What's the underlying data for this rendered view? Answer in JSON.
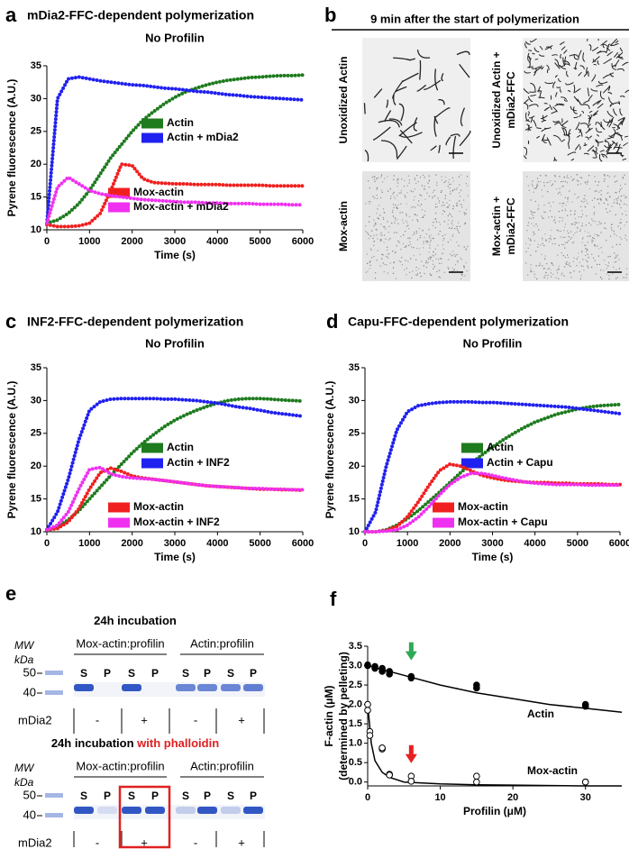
{
  "chart_data": [
    {
      "type": "line",
      "panel": "a",
      "title": "mDia2-FFC-dependent polymerization",
      "subtitle": "No Profilin",
      "xlabel": "Time (s)",
      "ylabel": "Pyrene fluorescence (A.U.)",
      "x": [
        0,
        250,
        500,
        750,
        1000,
        1250,
        1500,
        1750,
        2000,
        2250,
        2500,
        2750,
        3000,
        3250,
        3500,
        3750,
        4000,
        4250,
        4500,
        4750,
        5000,
        5250,
        5500,
        5750,
        6000
      ],
      "xlim": [
        0,
        6000
      ],
      "xticks": [
        0,
        1000,
        2000,
        3000,
        4000,
        5000,
        6000
      ],
      "ylim": [
        10,
        35
      ],
      "yticks": [
        10,
        15,
        20,
        25,
        30,
        35
      ],
      "series": [
        {
          "name": "Actin",
          "color": "#1e7b1e",
          "values": [
            11,
            11.5,
            12.5,
            14,
            16,
            18.5,
            21,
            23,
            25,
            26.7,
            28,
            29.2,
            30.2,
            31,
            31.6,
            32.1,
            32.5,
            32.8,
            33,
            33.2,
            33.3,
            33.4,
            33.5,
            33.5,
            33.6
          ]
        },
        {
          "name": "Actin + mDia2",
          "color": "#2020f0",
          "values": [
            11,
            30,
            33,
            33.3,
            33,
            32.7,
            32.5,
            32.3,
            32.1,
            32,
            31.8,
            31.6,
            31.5,
            31.3,
            31.1,
            31,
            30.8,
            30.6,
            30.5,
            30.3,
            30.2,
            30.1,
            30,
            29.9,
            29.8
          ]
        },
        {
          "name": "Mox-actin",
          "color": "#f02020",
          "values": [
            10.8,
            10.5,
            10.5,
            10.6,
            11,
            12.5,
            16,
            20,
            19.8,
            17.8,
            17.2,
            17.1,
            17,
            17,
            16.9,
            16.9,
            16.9,
            16.8,
            16.8,
            16.8,
            16.8,
            16.7,
            16.7,
            16.7,
            16.7
          ]
        },
        {
          "name": "Mox-actin + mDia2",
          "color": "#f030f0",
          "values": [
            11,
            16.5,
            18,
            17,
            16,
            15.5,
            15.2,
            15,
            14.8,
            14.6,
            14.5,
            14.4,
            14.3,
            14.2,
            14.2,
            14.1,
            14.1,
            14,
            14,
            14,
            13.9,
            13.9,
            13.9,
            13.8,
            13.8
          ]
        }
      ]
    },
    {
      "type": "line",
      "panel": "c",
      "title": "INF2-FFC-dependent polymerization",
      "subtitle": "No Profilin",
      "xlabel": "Time (s)",
      "ylabel": "Pyrene fluorescence (A.U.)",
      "x": [
        0,
        250,
        500,
        750,
        1000,
        1250,
        1500,
        1750,
        2000,
        2250,
        2500,
        2750,
        3000,
        3250,
        3500,
        3750,
        4000,
        4250,
        4500,
        4750,
        5000,
        5250,
        5500,
        5750,
        6000
      ],
      "xlim": [
        0,
        6000
      ],
      "xticks": [
        0,
        1000,
        2000,
        3000,
        4000,
        5000,
        6000
      ],
      "ylim": [
        10,
        35
      ],
      "yticks": [
        10,
        15,
        20,
        25,
        30,
        35
      ],
      "series": [
        {
          "name": "Actin",
          "color": "#1e7b1e",
          "values": [
            10.3,
            10.8,
            11.8,
            13.2,
            15,
            16.8,
            18.6,
            20.3,
            22,
            23.5,
            24.8,
            26,
            27,
            27.8,
            28.5,
            29.1,
            29.6,
            30,
            30.2,
            30.3,
            30.3,
            30.2,
            30.1,
            30,
            29.9
          ]
        },
        {
          "name": "Actin + INF2",
          "color": "#2020f0",
          "values": [
            10.3,
            13,
            18,
            24,
            28.5,
            29.8,
            30.2,
            30.3,
            30.3,
            30.3,
            30.3,
            30.2,
            30.2,
            30.1,
            30,
            29.8,
            29.6,
            29.3,
            29,
            28.8,
            28.5,
            28.2,
            28,
            27.8,
            27.6
          ]
        },
        {
          "name": "Mox-actin",
          "color": "#f02020",
          "values": [
            10.3,
            10.5,
            11.5,
            13.5,
            16.5,
            19,
            19.7,
            19.2,
            18.5,
            18.2,
            18,
            17.8,
            17.6,
            17.4,
            17.2,
            17,
            16.9,
            16.8,
            16.7,
            16.6,
            16.5,
            16.5,
            16.4,
            16.4,
            16.3
          ]
        },
        {
          "name": "Mox-actin + INF2",
          "color": "#f030f0",
          "values": [
            10.3,
            11,
            13,
            16.5,
            19.5,
            19.8,
            18.8,
            18.4,
            18.2,
            18.1,
            18,
            17.8,
            17.6,
            17.4,
            17.2,
            17,
            16.9,
            16.8,
            16.7,
            16.6,
            16.6,
            16.5,
            16.5,
            16.4,
            16.4
          ]
        }
      ]
    },
    {
      "type": "line",
      "panel": "d",
      "title": "Capu-FFC-dependent polymerization",
      "subtitle": "No Profilin",
      "xlabel": "Time (s)",
      "ylabel": "Pyrene fluorescence (A.U.)",
      "x": [
        0,
        250,
        500,
        750,
        1000,
        1250,
        1500,
        1750,
        2000,
        2250,
        2500,
        2750,
        3000,
        3250,
        3500,
        3750,
        4000,
        4250,
        4500,
        4750,
        5000,
        5250,
        5500,
        5750,
        6000
      ],
      "xlim": [
        0,
        6000
      ],
      "xticks": [
        0,
        1000,
        2000,
        3000,
        4000,
        5000,
        6000
      ],
      "ylim": [
        10,
        35
      ],
      "yticks": [
        10,
        15,
        20,
        25,
        30,
        35
      ],
      "series": [
        {
          "name": "Actin",
          "color": "#1e7b1e",
          "values": [
            10,
            10,
            10.3,
            11,
            12,
            13.2,
            14.6,
            16,
            17.5,
            19,
            20.4,
            21.7,
            22.9,
            24,
            25,
            25.9,
            26.7,
            27.3,
            27.9,
            28.3,
            28.7,
            29,
            29.2,
            29.3,
            29.4
          ]
        },
        {
          "name": "Actin + Capu",
          "color": "#2020f0",
          "values": [
            10,
            13,
            20,
            25.5,
            28.3,
            29.2,
            29.5,
            29.7,
            29.8,
            29.8,
            29.8,
            29.7,
            29.7,
            29.6,
            29.5,
            29.4,
            29.3,
            29.2,
            29.1,
            29,
            28.8,
            28.6,
            28.4,
            28.2,
            28
          ]
        },
        {
          "name": "Mox-actin",
          "color": "#f02020",
          "values": [
            10,
            10,
            10.2,
            10.8,
            12.3,
            14.5,
            17,
            19.3,
            20.3,
            20,
            19.3,
            18.6,
            18.2,
            17.9,
            17.7,
            17.6,
            17.5,
            17.5,
            17.4,
            17.4,
            17.3,
            17.3,
            17.3,
            17.2,
            17.2
          ]
        },
        {
          "name": "Mox-actin + Capu",
          "color": "#f030f0",
          "values": [
            10,
            10,
            10.1,
            10.3,
            11,
            12.2,
            13.8,
            15.6,
            17.2,
            18.3,
            18.9,
            18.9,
            18.6,
            18.2,
            17.9,
            17.6,
            17.4,
            17.3,
            17.2,
            17.2,
            17.2,
            17.1,
            17.1,
            17.1,
            17.1
          ]
        }
      ]
    },
    {
      "type": "scatter",
      "panel": "f",
      "xlabel": "Profilin (μM)",
      "ylabel": [
        "F-actin (μM)",
        "(determined by pelleting)"
      ],
      "xlim": [
        0,
        35
      ],
      "xticks": [
        0,
        10,
        20,
        30
      ],
      "ylim": [
        -0.1,
        3.5
      ],
      "yticks": [
        {
          "value": 0,
          "label": "0.0"
        },
        {
          "value": 0.5,
          "label": "0.5"
        },
        {
          "value": 1,
          "label": "1.0"
        },
        {
          "value": 1.5,
          "label": "1.5"
        },
        {
          "value": 2,
          "label": "2.0"
        },
        {
          "value": 2.5,
          "label": "2.5"
        },
        {
          "value": 3,
          "label": "3.0"
        },
        {
          "value": 3.5,
          "label": "3.5"
        }
      ],
      "series": [
        {
          "name": "Actin",
          "color": "#000000",
          "marker": "filled",
          "x": [
            0,
            0,
            1,
            1,
            2,
            2,
            3,
            3,
            6,
            6,
            15,
            15,
            30,
            30
          ],
          "values": [
            3.0,
            3.02,
            2.98,
            2.93,
            2.93,
            2.85,
            2.85,
            2.78,
            2.72,
            2.68,
            2.5,
            2.42,
            2.0,
            1.95
          ]
        },
        {
          "name": "Mox-actin",
          "color": "#000000",
          "marker": "open",
          "x": [
            0,
            0,
            0.3,
            0.3,
            2,
            2,
            3,
            3,
            6,
            6,
            15,
            15,
            30,
            30
          ],
          "values": [
            2.0,
            1.85,
            1.3,
            1.2,
            0.85,
            0.88,
            0.2,
            0.18,
            0.15,
            0.02,
            0.15,
            0.0,
            0.0,
            0.0
          ]
        }
      ],
      "fits": [
        {
          "x": [
            0,
            5,
            10,
            15,
            20,
            25,
            30,
            35
          ],
          "values": [
            3.0,
            2.75,
            2.5,
            2.3,
            2.15,
            2.0,
            1.9,
            1.8
          ]
        },
        {
          "x": [
            0,
            0.5,
            1,
            2,
            3,
            5,
            10,
            15,
            20,
            30,
            35
          ],
          "values": [
            2.0,
            1.0,
            0.55,
            0.25,
            0.12,
            0.0,
            -0.05,
            -0.07,
            -0.08,
            -0.1,
            -0.1
          ]
        }
      ],
      "arrows": [
        {
          "x": 6,
          "y": 2.95,
          "color": "#2eaa55"
        },
        {
          "x": 6,
          "y": 0.3,
          "color": "#e82020"
        }
      ]
    }
  ],
  "micrographs": {
    "panel": "b",
    "title": "9 min after the start of polymerization",
    "images": [
      {
        "label": [
          "Unoxidized Actin"
        ]
      },
      {
        "label": [
          "Unoxidized Actin +",
          "mDia2-FFC"
        ]
      },
      {
        "label": [
          "Mox-actin"
        ]
      },
      {
        "label": [
          "Mox-actin +",
          "mDia2-FFC"
        ]
      }
    ]
  },
  "gels": {
    "panel": "e",
    "blocks": [
      {
        "title": "24h incubation",
        "mw_label": [
          "MW",
          "kDa"
        ],
        "mw_ticks": [
          "50",
          "40"
        ],
        "groups": [
          "Mox-actin:profilin",
          "Actin:profilin"
        ],
        "lanes": [
          "S",
          "P",
          "S",
          "P",
          "S",
          "P",
          "S",
          "P"
        ],
        "condition": "mDia2",
        "condition_values": [
          "-",
          "+",
          "-",
          "+"
        ]
      },
      {
        "title": "24h incubation",
        "title_extra": "with phalloidin",
        "title_extra_color": "#e02020",
        "mw_label": [
          "MW",
          "kDa"
        ],
        "mw_ticks": [
          "50",
          "40"
        ],
        "groups": [
          "Mox-actin:profilin",
          "Actin:profilin"
        ],
        "lanes": [
          "S",
          "P",
          "S",
          "P",
          "S",
          "P",
          "S",
          "P"
        ],
        "condition": "mDia2",
        "condition_values": [
          "-",
          "+",
          "-",
          "+"
        ],
        "highlight": [
          2,
          3
        ],
        "highlight_color": "#e02020"
      }
    ]
  }
}
